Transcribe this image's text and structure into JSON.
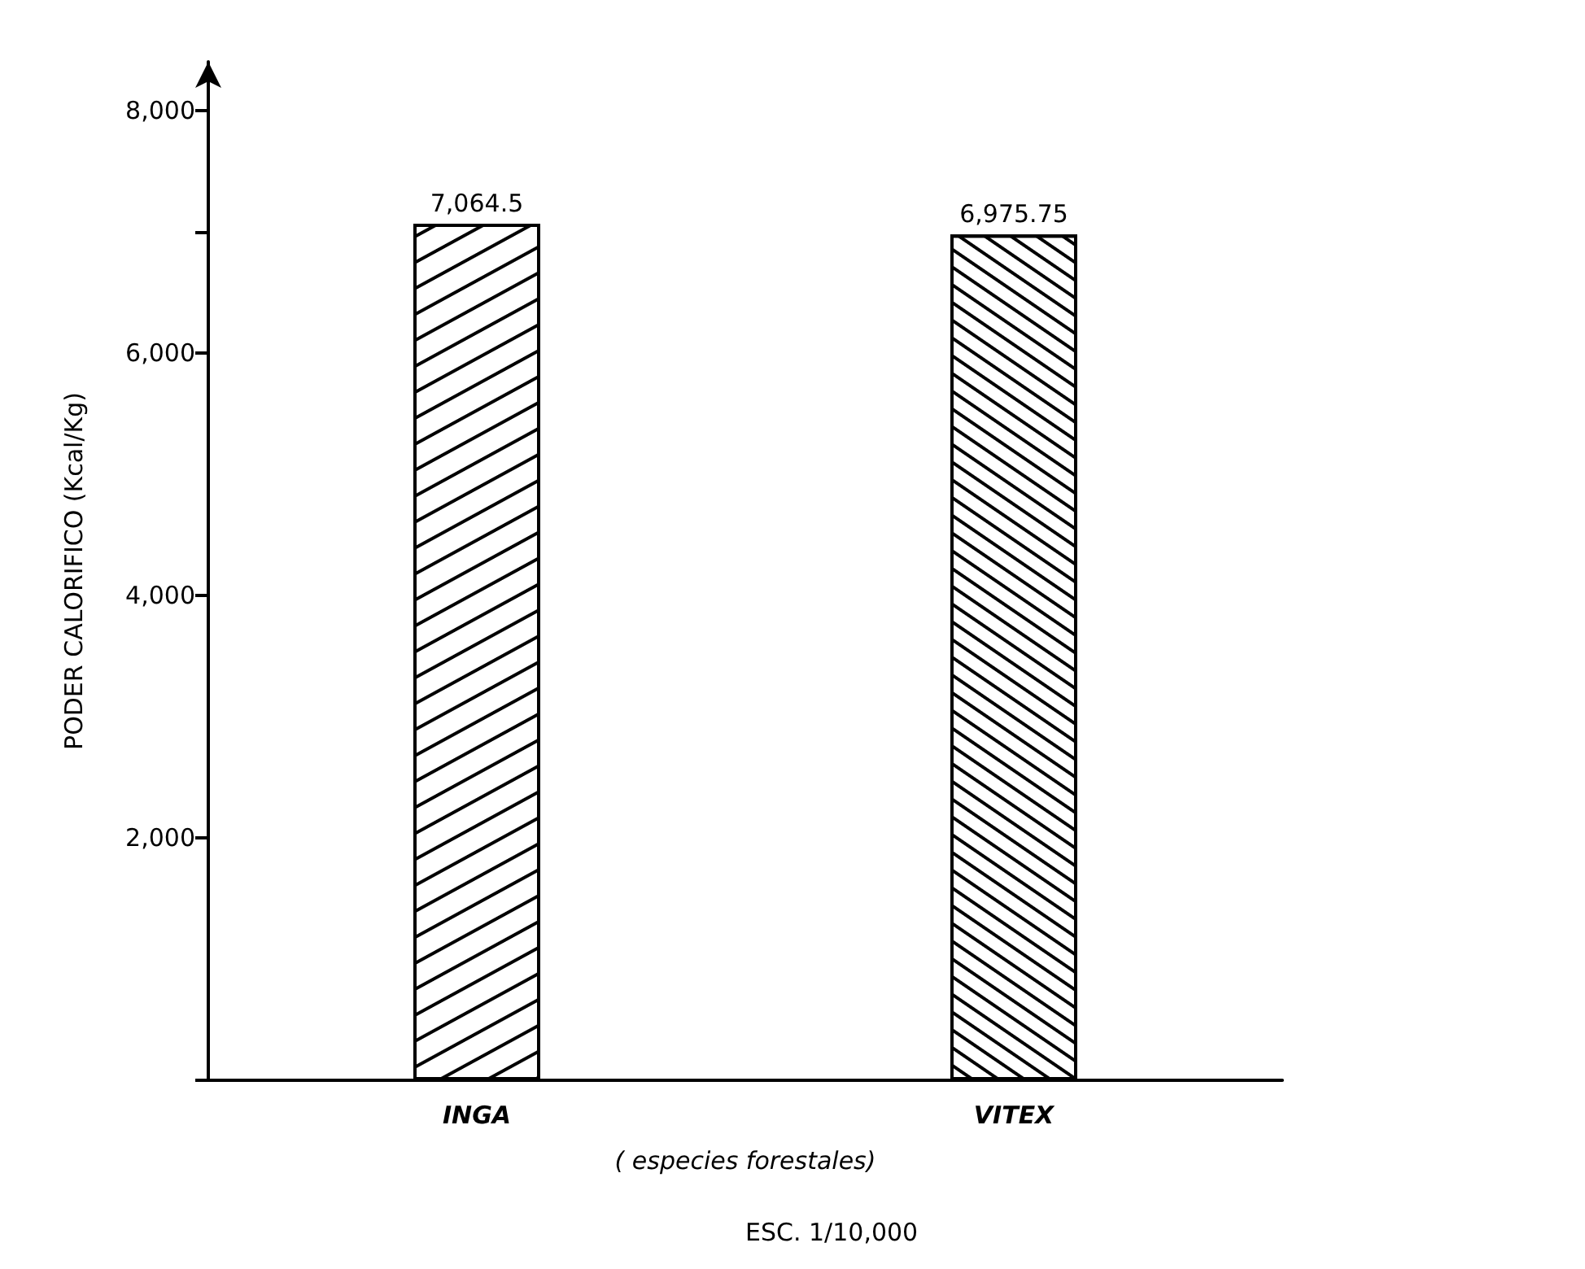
{
  "chart_data": {
    "type": "bar",
    "ylabel": "PODER CALORIFICO (Kcal/Kg)",
    "xlabel": "( especies forestales)",
    "annotations": [
      "ESC. 1/10,000"
    ],
    "categories": [
      "INGA",
      "VITEX"
    ],
    "values": [
      7064.5,
      6975.75
    ],
    "value_labels": [
      "7,064.5",
      "6,975.75"
    ],
    "colors": [
      "#ffffff",
      "#ffffff"
    ],
    "ylim": [
      0,
      8400
    ],
    "yticks": [
      {
        "value": 0,
        "label": null
      },
      {
        "value": 2000,
        "label": "2,000"
      },
      {
        "value": 4000,
        "label": "4,000"
      },
      {
        "value": 6000,
        "label": "6,000"
      },
      {
        "value": 7000,
        "label": null
      },
      {
        "value": 8000,
        "label": "8,000"
      }
    ],
    "grid": false
  }
}
